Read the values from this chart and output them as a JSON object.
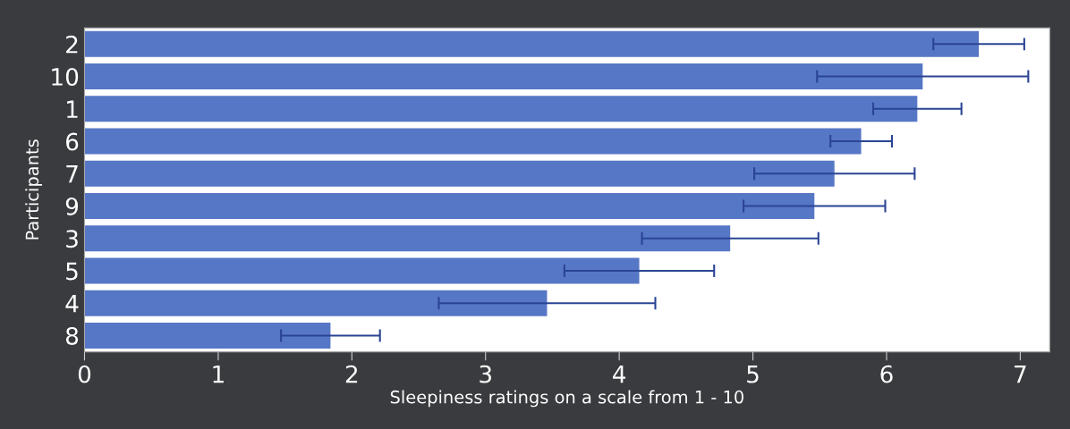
{
  "chart_data": {
    "type": "bar",
    "orientation": "horizontal",
    "xlabel": "Sleepiness ratings on a scale from 1 - 10",
    "ylabel": "Participants",
    "categories": [
      "2",
      "10",
      "1",
      "6",
      "7",
      "9",
      "3",
      "5",
      "4",
      "8"
    ],
    "values": [
      6.69,
      6.27,
      6.23,
      5.81,
      5.61,
      5.46,
      4.83,
      4.15,
      3.46,
      1.84
    ],
    "errors": [
      0.34,
      0.79,
      0.33,
      0.23,
      0.6,
      0.53,
      0.66,
      0.56,
      0.81,
      0.37
    ],
    "color": "#5677c5",
    "xlim": [
      0,
      7.22
    ],
    "xticks": [
      0,
      1,
      2,
      3,
      4,
      5,
      6,
      7
    ],
    "grid": false,
    "legend": false
  }
}
